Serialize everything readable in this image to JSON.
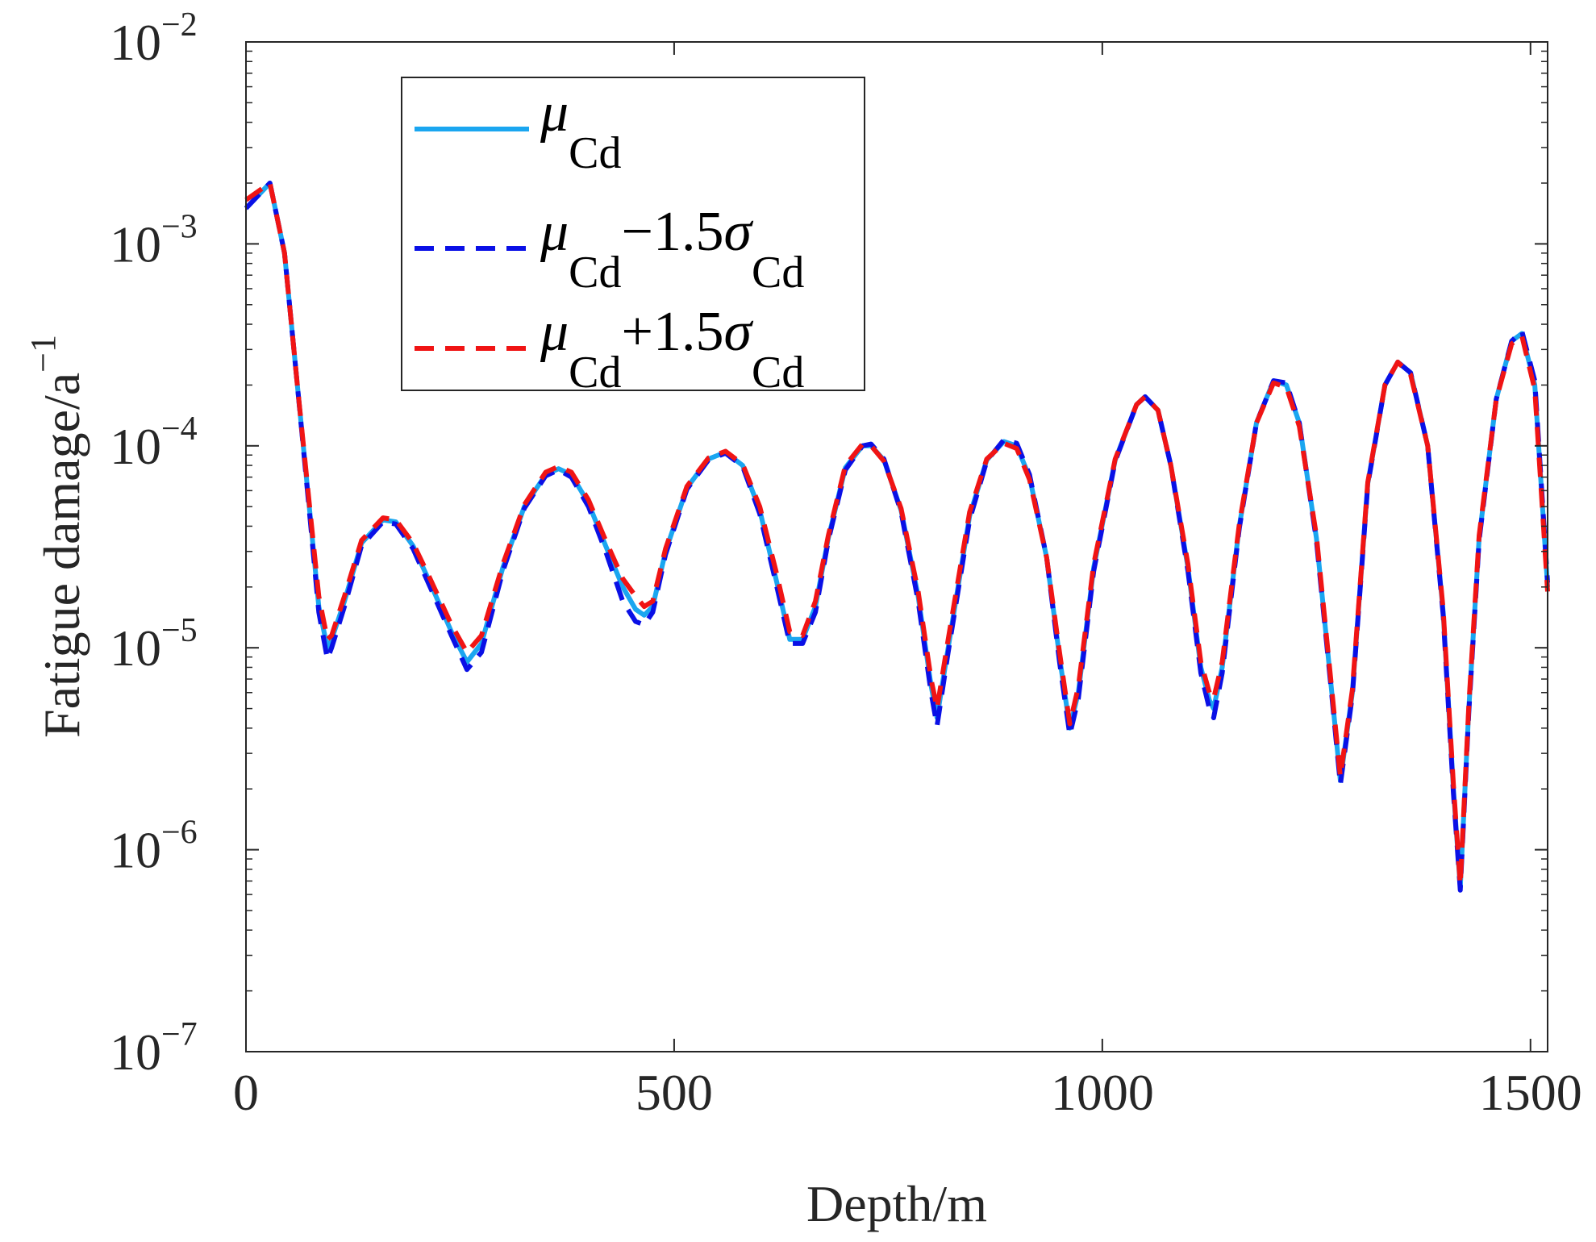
{
  "chart_data": {
    "type": "line",
    "xlabel": "Depth/m",
    "ylabel_main": "Fatigue damage/a",
    "ylabel_sup": "−1",
    "xlim": [
      0,
      1520
    ],
    "ylim_exp": [
      -7,
      -2
    ],
    "yscale": "log",
    "grid": false,
    "legend_position": "top-left",
    "x_ticks": [
      {
        "value": 0,
        "label": "0"
      },
      {
        "value": 500,
        "label": "500"
      },
      {
        "value": 1000,
        "label": "1000"
      },
      {
        "value": 1500,
        "label": "1500"
      }
    ],
    "y_ticks": [
      {
        "exp": -7,
        "base": "10",
        "sup": "−7"
      },
      {
        "exp": -6,
        "base": "10",
        "sup": "−6"
      },
      {
        "exp": -5,
        "base": "10",
        "sup": "−5"
      },
      {
        "exp": -4,
        "base": "10",
        "sup": "−4"
      },
      {
        "exp": -3,
        "base": "10",
        "sup": "−3"
      },
      {
        "exp": -2,
        "base": "10",
        "sup": "−2"
      }
    ],
    "series": [
      {
        "legend": {
          "mu": "μ",
          "sub": "Cd",
          "op": "",
          "sigma_coef": "",
          "sigma": "",
          "sigma_sub": ""
        },
        "color": "#1aa6f0",
        "dash": "solid",
        "x": [
          0,
          28,
          45,
          60,
          75,
          85,
          95,
          100,
          115,
          135,
          160,
          175,
          195,
          215,
          240,
          258,
          275,
          300,
          325,
          350,
          365,
          380,
          400,
          420,
          440,
          455,
          465,
          475,
          490,
          515,
          540,
          560,
          580,
          600,
          620,
          635,
          650,
          665,
          680,
          700,
          720,
          730,
          745,
          765,
          785,
          800,
          807,
          820,
          845,
          865,
          885,
          900,
          915,
          935,
          950,
          962,
          972,
          990,
          1015,
          1040,
          1050,
          1065,
          1080,
          1100,
          1115,
          1125,
          1130,
          1140,
          1160,
          1180,
          1200,
          1215,
          1230,
          1250,
          1268,
          1278,
          1292,
          1310,
          1330,
          1345,
          1360,
          1380,
          1398,
          1410,
          1418,
          1428,
          1440,
          1460,
          1478,
          1490,
          1505,
          1520
        ],
        "y": [
          0.0015,
          0.002,
          0.0009,
          0.0002,
          4.5e-05,
          1.6e-05,
          1e-05,
          1.1e-05,
          1.7e-05,
          3.3e-05,
          4.3e-05,
          4.2e-05,
          3.2e-05,
          2.1e-05,
          1.2e-05,
          8.5e-06,
          1.05e-05,
          2.5e-05,
          5e-05,
          7.2e-05,
          7.7e-05,
          7.2e-05,
          5.2e-05,
          3.2e-05,
          2e-05,
          1.55e-05,
          1.45e-05,
          1.6e-05,
          3e-05,
          6.2e-05,
          8.6e-05,
          9.3e-05,
          8e-05,
          4.8e-05,
          2.1e-05,
          1.1e-05,
          1.1e-05,
          1.6e-05,
          3.5e-05,
          7.8e-05,
          0.0001,
          0.0001,
          8.5e-05,
          4.8e-05,
          1.8e-05,
          6.5e-06,
          4.5e-06,
          1e-05,
          4.5e-05,
          8.5e-05,
          0.000105,
          0.0001,
          7e-05,
          2.8e-05,
          9e-06,
          4e-06,
          6e-06,
          2.5e-05,
          8.5e-05,
          0.00016,
          0.000175,
          0.00015,
          8e-05,
          2.5e-05,
          8e-06,
          5.5e-06,
          5e-06,
          8e-06,
          4e-05,
          0.00013,
          0.00021,
          0.0002,
          0.00013,
          3.5e-05,
          6e-06,
          2.2e-06,
          6e-06,
          6.5e-05,
          0.0002,
          0.00026,
          0.00023,
          0.0001,
          1.5e-05,
          2e-06,
          6.5e-07,
          5e-06,
          3.5e-05,
          0.00017,
          0.00033,
          0.00036,
          0.0002,
          2e-05
        ]
      },
      {
        "legend": {
          "mu": "μ",
          "sub": "Cd",
          "op": "−",
          "sigma_coef": "1.5",
          "sigma": "σ",
          "sigma_sub": "Cd"
        },
        "color": "#0a10e6",
        "dash": "dashed",
        "x": [
          0,
          28,
          45,
          60,
          75,
          85,
          95,
          100,
          115,
          135,
          160,
          175,
          195,
          215,
          240,
          258,
          275,
          300,
          325,
          350,
          365,
          380,
          400,
          420,
          440,
          455,
          465,
          475,
          490,
          515,
          540,
          560,
          580,
          600,
          620,
          635,
          650,
          665,
          680,
          700,
          720,
          730,
          745,
          765,
          785,
          800,
          807,
          820,
          845,
          865,
          885,
          900,
          915,
          935,
          950,
          962,
          972,
          990,
          1015,
          1040,
          1050,
          1065,
          1080,
          1100,
          1115,
          1125,
          1130,
          1140,
          1160,
          1180,
          1200,
          1215,
          1230,
          1250,
          1268,
          1278,
          1292,
          1310,
          1330,
          1345,
          1360,
          1380,
          1398,
          1410,
          1418,
          1428,
          1440,
          1460,
          1478,
          1490,
          1505,
          1520
        ],
        "y": [
          0.0015,
          0.002,
          0.0009,
          0.0002,
          4.3e-05,
          1.5e-05,
          8.8e-06,
          1e-05,
          1.6e-05,
          3.2e-05,
          4.2e-05,
          4.1e-05,
          3.1e-05,
          2e-05,
          1.15e-05,
          7.8e-06,
          9.5e-06,
          2.4e-05,
          4.9e-05,
          7.1e-05,
          7.6e-05,
          7e-05,
          5e-05,
          3e-05,
          1.7e-05,
          1.35e-05,
          1.3e-05,
          1.5e-05,
          2.9e-05,
          6.1e-05,
          8.5e-05,
          9.2e-05,
          7.9e-05,
          4.6e-05,
          2e-05,
          1.05e-05,
          1.05e-05,
          1.5e-05,
          3.4e-05,
          7.6e-05,
          0.0001,
          0.000102,
          8.6e-05,
          4.7e-05,
          1.7e-05,
          6e-06,
          4.1e-06,
          9.5e-06,
          4.3e-05,
          8.4e-05,
          0.000107,
          0.000103,
          7.2e-05,
          2.8e-05,
          8.5e-06,
          3.7e-06,
          5.6e-06,
          2.4e-05,
          8.4e-05,
          0.00016,
          0.000175,
          0.00015,
          8e-05,
          2.4e-05,
          7.5e-06,
          5e-06,
          4.5e-06,
          7.5e-06,
          3.9e-05,
          0.00013,
          0.00021,
          0.000205,
          0.00013,
          3.4e-05,
          5.8e-06,
          2.1e-06,
          5.8e-06,
          6.4e-05,
          0.0002,
          0.00026,
          0.00023,
          0.0001,
          1.45e-05,
          1.9e-06,
          6.3e-07,
          4.8e-06,
          3.4e-05,
          0.00017,
          0.00033,
          0.00037,
          0.00021,
          2.1e-05
        ]
      },
      {
        "legend": {
          "mu": "μ",
          "sub": "Cd",
          "op": "+",
          "sigma_coef": "1.5",
          "sigma": "σ",
          "sigma_sub": "Cd"
        },
        "color": "#f01414",
        "dash": "dashed",
        "x": [
          0,
          28,
          45,
          60,
          75,
          85,
          95,
          100,
          115,
          135,
          160,
          175,
          195,
          215,
          240,
          258,
          275,
          300,
          325,
          350,
          365,
          380,
          400,
          420,
          440,
          455,
          465,
          475,
          490,
          515,
          540,
          560,
          580,
          600,
          620,
          635,
          650,
          665,
          680,
          700,
          720,
          730,
          745,
          765,
          785,
          800,
          807,
          820,
          845,
          865,
          885,
          900,
          915,
          935,
          950,
          962,
          972,
          990,
          1015,
          1040,
          1050,
          1065,
          1080,
          1100,
          1115,
          1125,
          1130,
          1140,
          1160,
          1180,
          1200,
          1215,
          1230,
          1250,
          1268,
          1278,
          1292,
          1310,
          1330,
          1345,
          1360,
          1380,
          1398,
          1410,
          1418,
          1428,
          1440,
          1460,
          1478,
          1490,
          1505,
          1520
        ],
        "y": [
          0.00165,
          0.002,
          0.0009,
          0.0002,
          4.7e-05,
          1.8e-05,
          1.1e-05,
          1.15e-05,
          1.8e-05,
          3.4e-05,
          4.4e-05,
          4.3e-05,
          3.3e-05,
          2.2e-05,
          1.3e-05,
          9.5e-06,
          1.15e-05,
          2.6e-05,
          5.1e-05,
          7.4e-05,
          7.9e-05,
          7.4e-05,
          5.4e-05,
          3.4e-05,
          2.2e-05,
          1.8e-05,
          1.6e-05,
          1.7e-05,
          3.1e-05,
          6.3e-05,
          8.7e-05,
          9.4e-05,
          8.1e-05,
          5e-05,
          2.3e-05,
          1.2e-05,
          1.15e-05,
          1.7e-05,
          3.6e-05,
          8e-05,
          0.000102,
          0.0001,
          8.4e-05,
          4.9e-05,
          1.9e-05,
          7e-06,
          5e-06,
          1.1e-05,
          4.7e-05,
          8.6e-05,
          0.000103,
          9.7e-05,
          6.8e-05,
          2.8e-05,
          9.5e-06,
          4.2e-06,
          6.4e-06,
          2.6e-05,
          8.6e-05,
          0.00016,
          0.000175,
          0.00015,
          8e-05,
          2.6e-05,
          8.5e-06,
          6e-06,
          5.6e-06,
          8.5e-06,
          4.1e-05,
          0.00013,
          0.000205,
          0.000195,
          0.000125,
          3.6e-05,
          6.2e-06,
          2.3e-06,
          6.2e-06,
          6.6e-05,
          0.0002,
          0.00026,
          0.000225,
          0.0001,
          1.55e-05,
          2.1e-06,
          6.7e-07,
          5.2e-06,
          3.6e-05,
          0.00017,
          0.00032,
          0.00035,
          0.00019,
          1.9e-05
        ]
      }
    ]
  }
}
